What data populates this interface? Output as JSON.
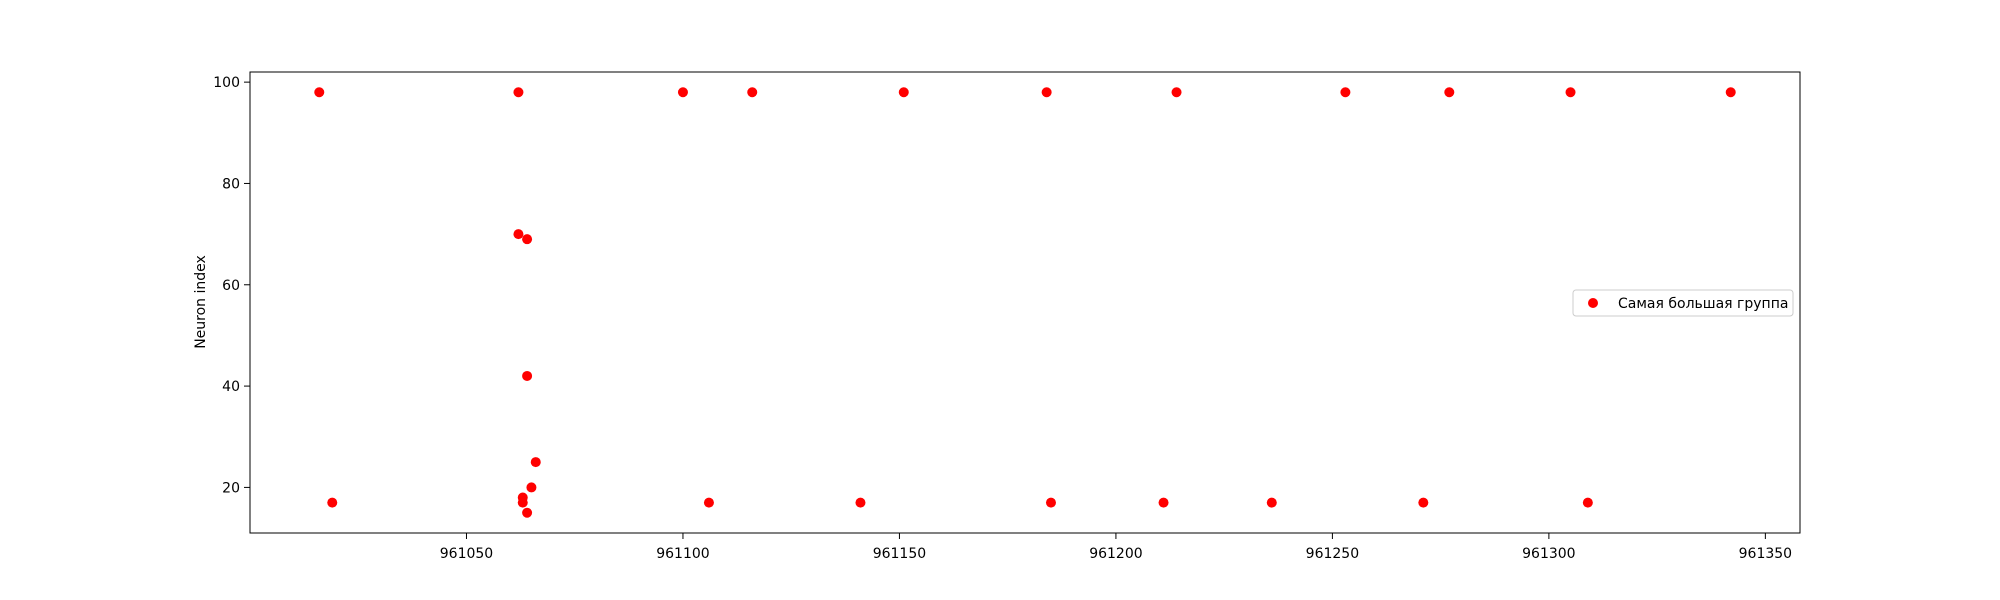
{
  "chart_data": {
    "type": "scatter",
    "title": "",
    "xlabel": "",
    "ylabel": "Neuron index",
    "xlim": [
      961000,
      961358
    ],
    "ylim": [
      11,
      102
    ],
    "xticks": [
      961050,
      961100,
      961150,
      961200,
      961250,
      961300,
      961350
    ],
    "xtick_labels": [
      "961050",
      "961100",
      "961150",
      "961200",
      "961250",
      "961300",
      "961350"
    ],
    "yticks": [
      20,
      40,
      60,
      80,
      100
    ],
    "ytick_labels": [
      "20",
      "40",
      "60",
      "80",
      "100"
    ],
    "grid": false,
    "legend_position": "center-right",
    "series": [
      {
        "name": "Самая большая группа",
        "color": "#ff0000",
        "marker": "circle",
        "points": [
          {
            "x": 961016,
            "y": 98
          },
          {
            "x": 961062,
            "y": 98
          },
          {
            "x": 961100,
            "y": 98
          },
          {
            "x": 961116,
            "y": 98
          },
          {
            "x": 961151,
            "y": 98
          },
          {
            "x": 961184,
            "y": 98
          },
          {
            "x": 961214,
            "y": 98
          },
          {
            "x": 961253,
            "y": 98
          },
          {
            "x": 961277,
            "y": 98
          },
          {
            "x": 961305,
            "y": 98
          },
          {
            "x": 961342,
            "y": 98
          },
          {
            "x": 961062,
            "y": 70
          },
          {
            "x": 961064,
            "y": 69
          },
          {
            "x": 961064,
            "y": 42
          },
          {
            "x": 961066,
            "y": 25
          },
          {
            "x": 961065,
            "y": 20
          },
          {
            "x": 961063,
            "y": 18
          },
          {
            "x": 961063,
            "y": 17
          },
          {
            "x": 961064,
            "y": 15
          },
          {
            "x": 961019,
            "y": 17
          },
          {
            "x": 961106,
            "y": 17
          },
          {
            "x": 961141,
            "y": 17
          },
          {
            "x": 961185,
            "y": 17
          },
          {
            "x": 961211,
            "y": 17
          },
          {
            "x": 961236,
            "y": 17
          },
          {
            "x": 961271,
            "y": 17
          },
          {
            "x": 961309,
            "y": 17
          }
        ]
      }
    ]
  }
}
